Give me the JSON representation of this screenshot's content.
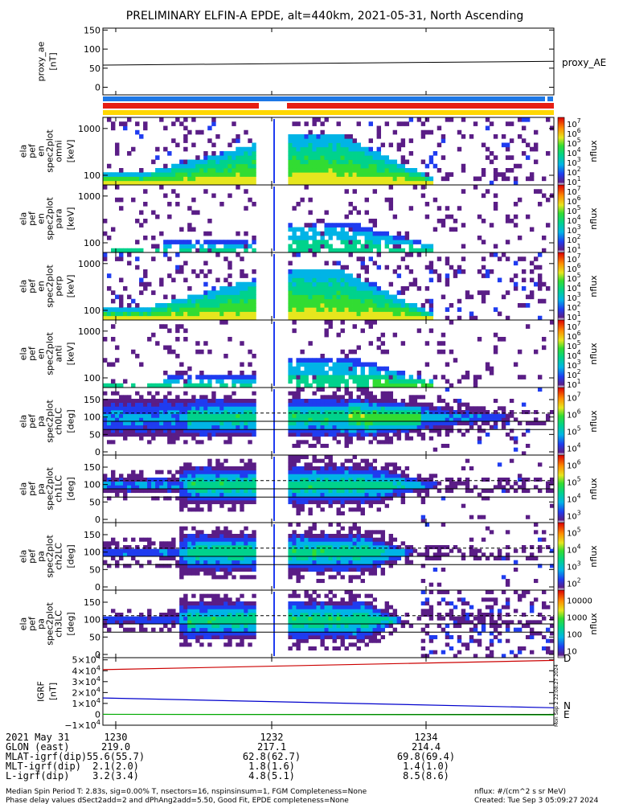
{
  "title": "PRELIMINARY ELFIN-A EPDE, alt=440km, 2021-05-31, North Ascending",
  "colors": {
    "background": "#ffffff",
    "bar_blue": "#1e78e6",
    "bar_red": "#e61e14",
    "bar_yellow": "#ffd700",
    "ae_line": "#000000",
    "grf_n": "#0000cc",
    "grf_e": "#00aa00",
    "grf_d": "#cc0000"
  },
  "chart_data": [
    {
      "type": "line",
      "panel": "proxy_ae",
      "ylabel": "proxy_ae [nT]",
      "yticks": [
        "0",
        "50",
        "100",
        "150"
      ],
      "ylim": [
        -20,
        155
      ],
      "series": [
        {
          "name": "proxy_AE",
          "x": [
            12.28,
            12.35
          ],
          "values": [
            58,
            68
          ]
        }
      ]
    },
    {
      "type": "heatmap",
      "panel": "spec-omni",
      "ylabel": "ela pef en spec2plot omni [keV]",
      "yticks": [
        "100",
        "1000"
      ],
      "colorbar": {
        "label": "nflux",
        "ticks": [
          "10^1",
          "10^2",
          "10^3",
          "10^4",
          "10^5",
          "10^6",
          "10^7"
        ]
      }
    },
    {
      "type": "heatmap",
      "panel": "spec-para",
      "ylabel": "ela pef en spec2plot para [keV]",
      "yticks": [
        "100",
        "1000"
      ],
      "colorbar": {
        "label": "nflux",
        "ticks": [
          "10^1",
          "10^2",
          "10^3",
          "10^4",
          "10^5",
          "10^6",
          "10^7"
        ]
      }
    },
    {
      "type": "heatmap",
      "panel": "spec-perp",
      "ylabel": "ela pef en spec2plot perp [keV]",
      "yticks": [
        "100",
        "1000"
      ],
      "colorbar": {
        "label": "nflux",
        "ticks": [
          "10^1",
          "10^2",
          "10^3",
          "10^4",
          "10^5",
          "10^6",
          "10^7"
        ]
      }
    },
    {
      "type": "heatmap",
      "panel": "spec-anti",
      "ylabel": "ela pef en spec2plot anti [keV]",
      "yticks": [
        "100",
        "1000"
      ],
      "colorbar": {
        "label": "nflux",
        "ticks": [
          "10^1",
          "10^2",
          "10^3",
          "10^4",
          "10^5",
          "10^6",
          "10^7"
        ]
      }
    },
    {
      "type": "heatmap",
      "panel": "pa-ch0",
      "ylabel": "ela pef pa spec2plot ch0LC [deg]",
      "yticks": [
        "0",
        "50",
        "100",
        "150"
      ],
      "colorbar": {
        "label": "nflux",
        "ticks": [
          "10^4",
          "10^5",
          "10^6",
          "10^7"
        ]
      }
    },
    {
      "type": "heatmap",
      "panel": "pa-ch1",
      "ylabel": "ela pef pa spec2plot ch1LC [deg]",
      "yticks": [
        "0",
        "50",
        "100",
        "150"
      ],
      "colorbar": {
        "label": "nflux",
        "ticks": [
          "10^3",
          "10^4",
          "10^5",
          "10^6"
        ]
      }
    },
    {
      "type": "heatmap",
      "panel": "pa-ch2",
      "ylabel": "ela pef pa spec2plot ch2LC [deg]",
      "yticks": [
        "0",
        "50",
        "100",
        "150"
      ],
      "colorbar": {
        "label": "nflux",
        "ticks": [
          "10^2",
          "10^3",
          "10^4",
          "10^5"
        ]
      }
    },
    {
      "type": "heatmap",
      "panel": "pa-ch3",
      "ylabel": "ela pef pa spec2plot ch3LC [deg]",
      "yticks": [
        "0",
        "50",
        "100",
        "150"
      ],
      "colorbar": {
        "label": "nflux",
        "ticks": [
          "10",
          "100",
          "1000",
          "10000"
        ]
      }
    },
    {
      "type": "line",
      "panel": "igrf",
      "ylabel": "IGRF [nT]",
      "yticks": [
        "−1×10^4",
        "0",
        "1×10^4",
        "2×10^4",
        "3×10^4",
        "4×10^4",
        "5×10^4"
      ],
      "ylim": [
        -10000,
        52000
      ],
      "series": [
        {
          "name": "N",
          "x": [
            12.28,
            12.35
          ],
          "values": [
            15000,
            6000
          ]
        },
        {
          "name": "E",
          "x": [
            12.28,
            12.35
          ],
          "values": [
            0,
            -500
          ]
        },
        {
          "name": "D",
          "x": [
            12.28,
            12.35
          ],
          "values": [
            41000,
            49500
          ]
        }
      ]
    }
  ],
  "side_labels": {
    "proxy_ae": "proxy_AE",
    "igrf_n": "N",
    "igrf_e": "E",
    "igrf_d": "D",
    "tplot_stamp": "Mon Sep  2 22:08:27 2024"
  },
  "xaxis": {
    "row_labels": [
      "2021 May 31",
      "GLON (east)",
      "MLAT-igrf(dip)",
      "MLT-igrf(dip)",
      "L-igrf(dip)"
    ],
    "columns": [
      {
        "values": [
          "1230",
          "219.0",
          "55.6(55.7)",
          "2.1(2.0)",
          "3.2(3.4)"
        ]
      },
      {
        "values": [
          "1232",
          "217.1",
          "62.8(62.7)",
          "1.8(1.6)",
          "4.8(5.1)"
        ]
      },
      {
        "values": [
          "1234",
          "214.4",
          "69.8(69.4)",
          "1.4(1.0)",
          "8.5(8.6)"
        ]
      }
    ]
  },
  "footer": {
    "line1": "Median Spin Period T: 2.83s, sig=0.00% T, nsectors=16, nspinsinsum=1, FGM Completeness=None",
    "line2": "Phase delay values dSect2add=2 and dPhAng2add=5.50, Good Fit, EPDE completeness=None",
    "units": "nflux: #/(cm^2 s sr MeV)",
    "created": "Created: Tue Sep  3 05:09:27 2024"
  }
}
